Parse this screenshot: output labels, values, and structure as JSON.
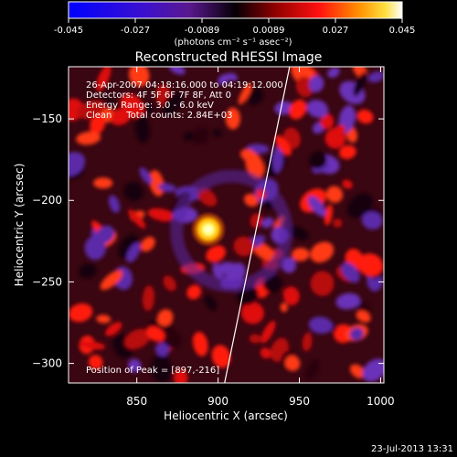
{
  "colorbar": {
    "ticks": [
      "-0.045",
      "-0.027",
      "-0.0089",
      "0.0089",
      "0.027",
      "0.045"
    ],
    "units": "(photons cm⁻² s⁻¹ asec⁻²)",
    "range": [
      -0.045,
      0.045
    ]
  },
  "title": "Reconstructed RHESSI Image",
  "annotations": {
    "line1": "26-Apr-2007 04:18:16.000 to 04:19:12.000",
    "line2": "Detectors: 4F 5F 6F 7F 8F, Att 0",
    "line3": "Energy Range: 3.0 - 6.0 keV",
    "line4": "Clean     Total counts: 2.84E+03",
    "peak": "Position of Peak = [897,-216]"
  },
  "footer": {
    "timestamp": "23-Jul-2013 13:31"
  },
  "colors": {
    "background": "#000000",
    "frame": "#ffffff",
    "limb": "#ffffff"
  },
  "chart_data": {
    "type": "heatmap",
    "title": "Reconstructed RHESSI Image",
    "xlabel": "Heliocentric X (arcsec)",
    "ylabel": "Heliocentric Y (arcsec)",
    "xlim": [
      808,
      1002
    ],
    "ylim": [
      -312,
      -118
    ],
    "xticks": [
      850,
      900,
      950,
      1000
    ],
    "xtick_labels": [
      "850",
      "900",
      "950",
      "1000"
    ],
    "yticks": [
      -150,
      -200,
      -250,
      -300
    ],
    "ytick_labels": [
      "−150",
      "−200",
      "−250",
      "−300"
    ],
    "colormap": "red-temperature (blue-purple-black-red-yellow-white)",
    "value_range": [
      -0.045,
      0.045
    ],
    "peak": {
      "x": 897,
      "y": -216,
      "value": 0.045
    },
    "solar_limb": [
      {
        "x": 944,
        "y": -118
      },
      {
        "x": 904,
        "y": -312
      }
    ]
  }
}
